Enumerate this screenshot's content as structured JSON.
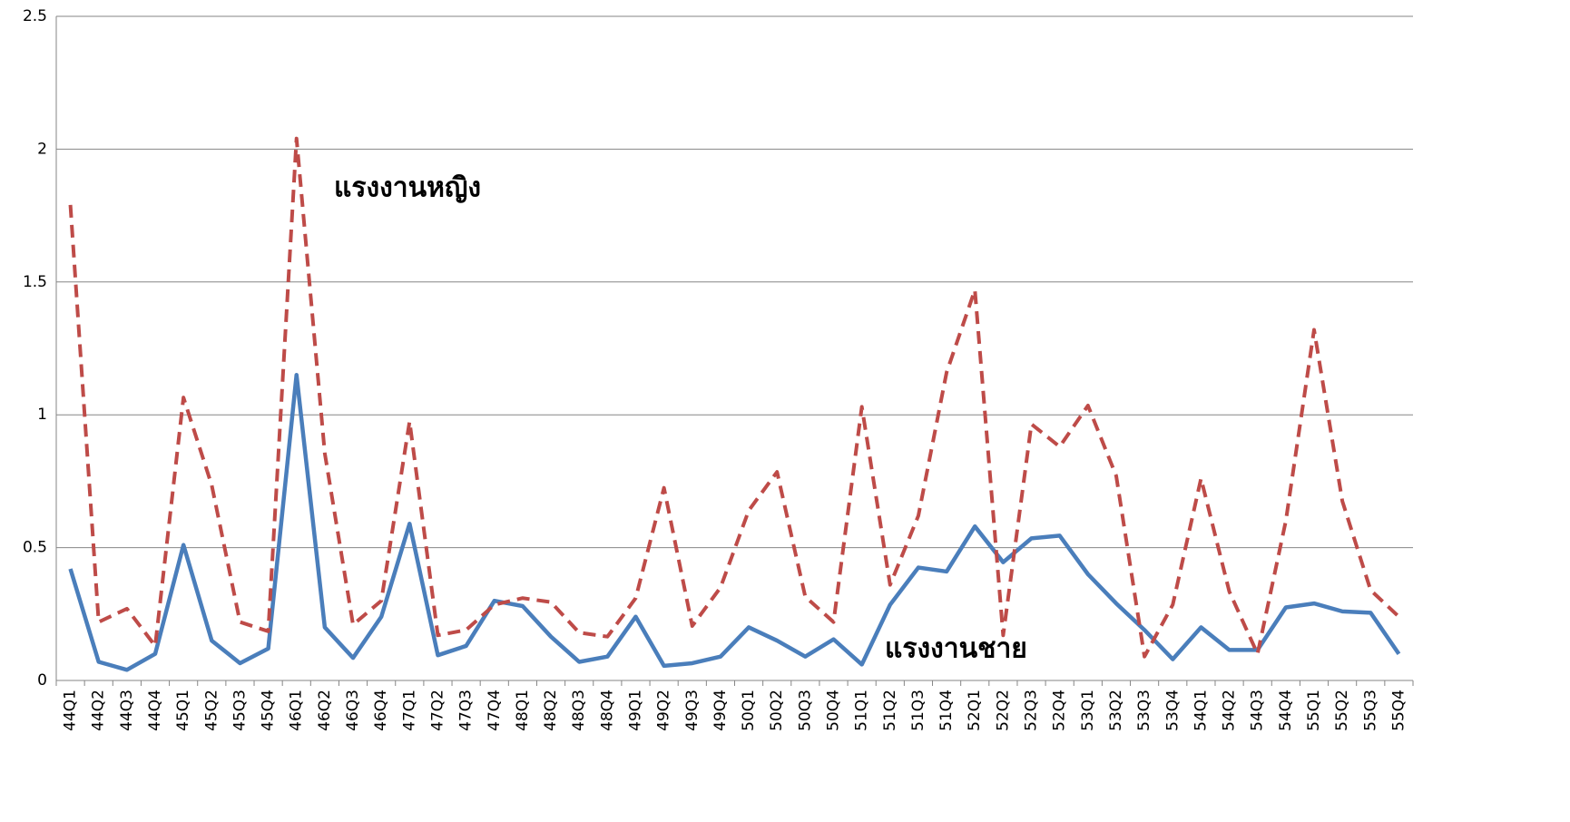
{
  "chart_data": {
    "type": "line",
    "categories": [
      "44Q1",
      "44Q2",
      "44Q3",
      "44Q4",
      "45Q1",
      "45Q2",
      "45Q3",
      "45Q4",
      "46Q1",
      "46Q2",
      "46Q3",
      "46Q4",
      "47Q1",
      "47Q2",
      "47Q3",
      "47Q4",
      "48Q1",
      "48Q2",
      "48Q3",
      "48Q4",
      "49Q1",
      "49Q2",
      "49Q3",
      "49Q4",
      "50Q1",
      "50Q2",
      "50Q3",
      "50Q4",
      "51Q1",
      "51Q2",
      "51Q3",
      "51Q4",
      "52Q1",
      "52Q2",
      "52Q3",
      "52Q4",
      "53Q1",
      "53Q2",
      "53Q3",
      "53Q4",
      "54Q1",
      "54Q2",
      "54Q3",
      "54Q4",
      "55Q1",
      "55Q2",
      "55Q3",
      "55Q4"
    ],
    "series": [
      {
        "name": "แรงงานชาย",
        "color": "#4a7ebb",
        "dashed": false,
        "values": [
          0.42,
          0.07,
          0.04,
          0.1,
          0.51,
          0.15,
          0.065,
          0.12,
          1.15,
          0.2,
          0.085,
          0.24,
          0.59,
          0.095,
          0.13,
          0.3,
          0.28,
          0.165,
          0.07,
          0.09,
          0.24,
          0.055,
          0.065,
          0.09,
          0.2,
          0.15,
          0.09,
          0.155,
          0.06,
          0.285,
          0.425,
          0.41,
          0.58,
          0.445,
          0.535,
          0.545,
          0.4,
          0.29,
          0.19,
          0.08,
          0.2,
          0.115,
          0.115,
          0.275,
          0.29,
          0.26,
          0.255,
          0.1
        ]
      },
      {
        "name": "แรงงานหญิง",
        "color": "#be4b48",
        "dashed": true,
        "values": [
          1.79,
          0.22,
          0.27,
          0.13,
          1.065,
          0.735,
          0.22,
          0.185,
          2.04,
          0.855,
          0.21,
          0.3,
          0.975,
          0.17,
          0.19,
          0.285,
          0.31,
          0.295,
          0.18,
          0.165,
          0.31,
          0.725,
          0.205,
          0.35,
          0.64,
          0.785,
          0.315,
          0.22,
          1.03,
          0.36,
          0.62,
          1.16,
          1.47,
          0.17,
          0.965,
          0.88,
          1.035,
          0.77,
          0.09,
          0.285,
          0.76,
          0.335,
          0.1,
          0.6,
          1.32,
          0.675,
          0.34,
          0.24
        ]
      }
    ],
    "ylim": [
      0,
      2.5
    ],
    "yticks": [
      0,
      0.5,
      1,
      1.5,
      2,
      2.5
    ],
    "grid": true
  }
}
